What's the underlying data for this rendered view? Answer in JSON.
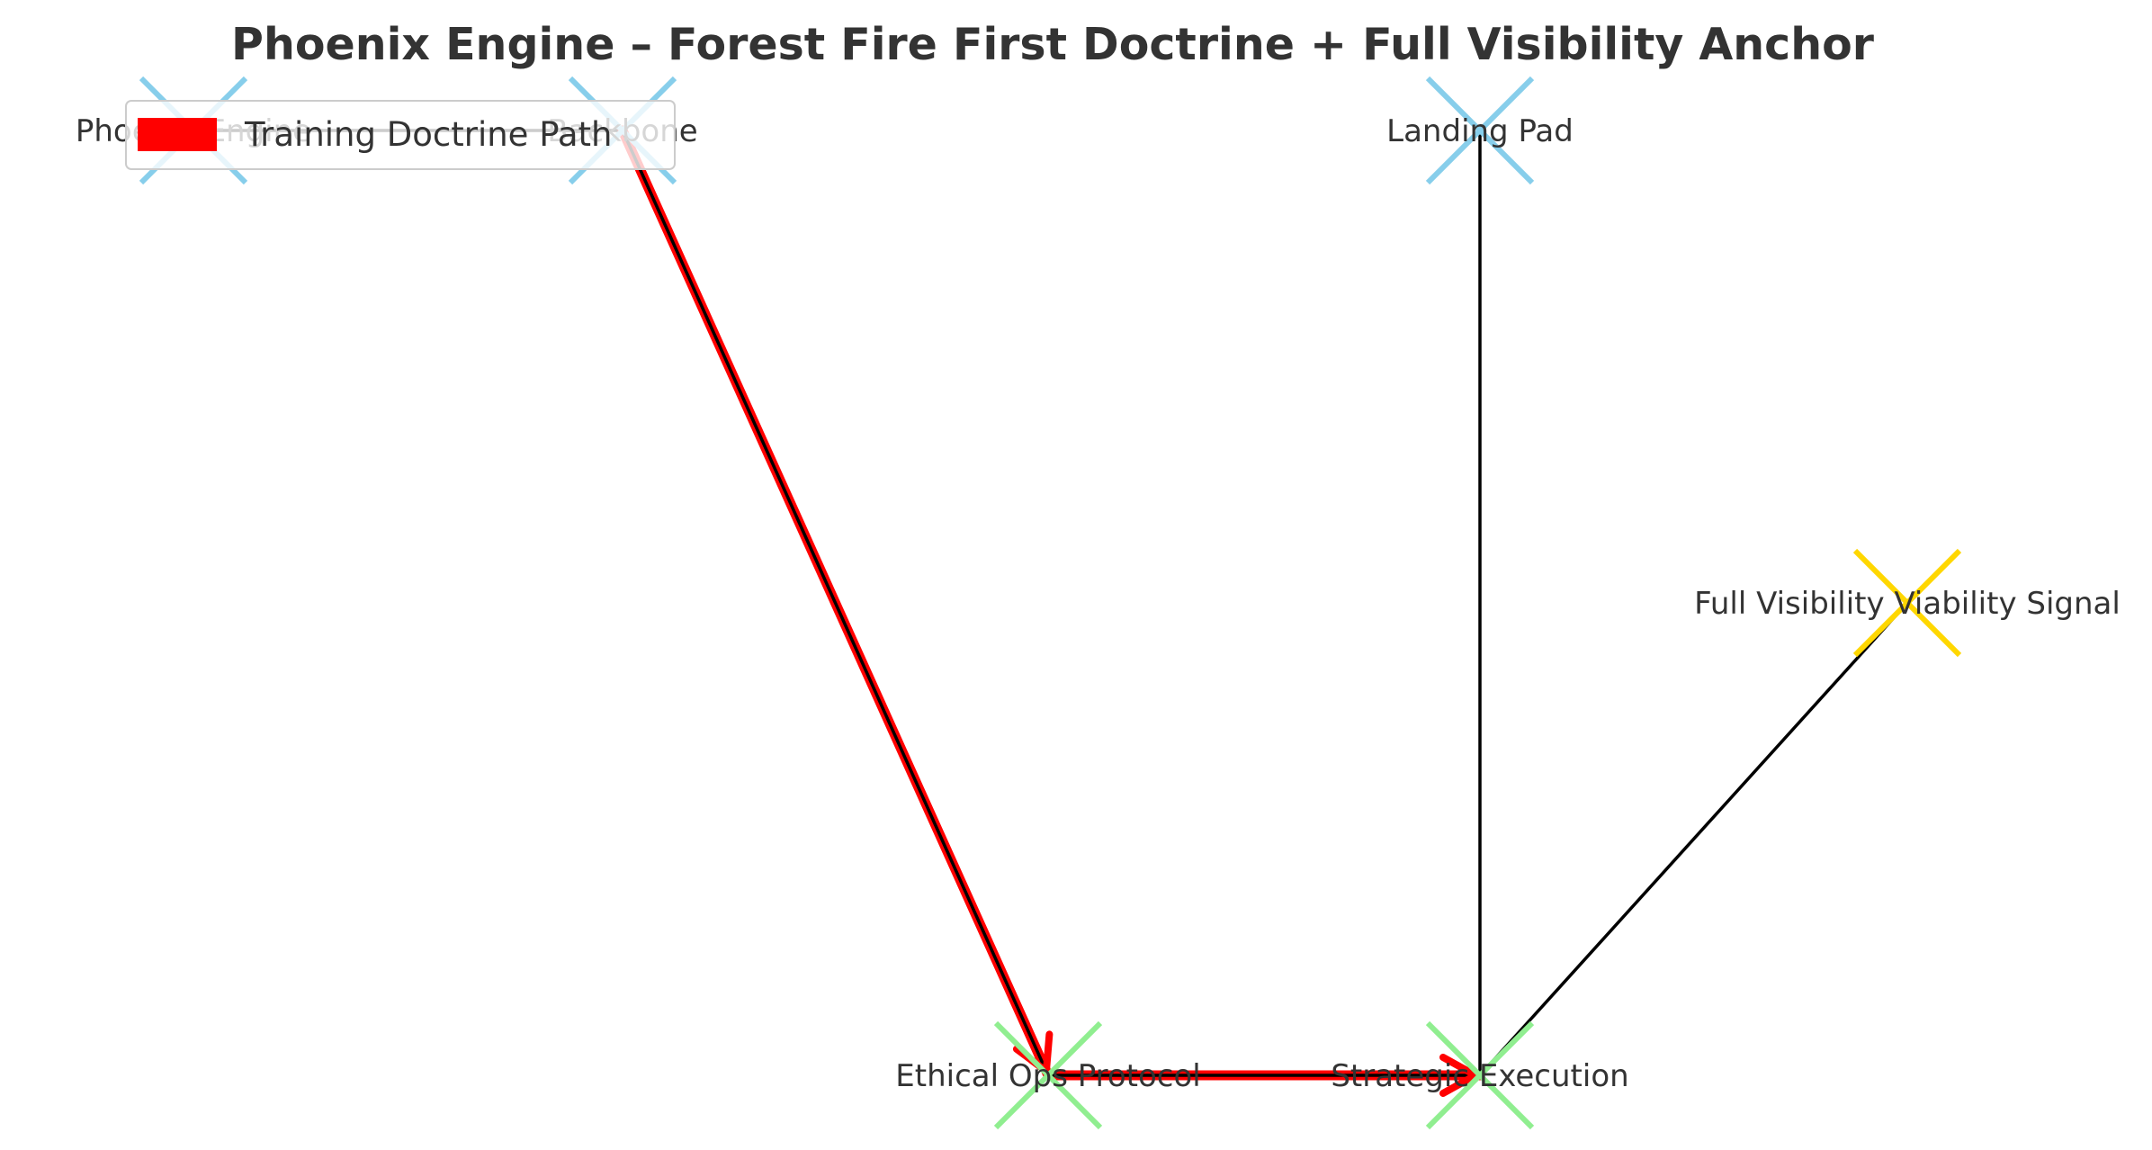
{
  "title": "Phoenix Engine – Forest Fire First Doctrine + Full Visibility Anchor",
  "legend": {
    "label": "Training Doctrine Path",
    "color": "#ff0000"
  },
  "colors": {
    "root_marker": "#87ceeb",
    "operation_marker": "#90ee90",
    "signal_marker": "#ffd700",
    "edge": "#000000",
    "path": "#ff0000",
    "text": "#333333"
  },
  "nodes": [
    {
      "id": "phoenix",
      "label": "Phoenix Engine",
      "category": "root_marker"
    },
    {
      "id": "backbone",
      "label": "Backbone",
      "category": "root_marker"
    },
    {
      "id": "landing",
      "label": "Landing Pad",
      "category": "root_marker"
    },
    {
      "id": "visibility",
      "label": "Full Visibility Viability Signal",
      "category": "signal_marker"
    },
    {
      "id": "ethical",
      "label": "Ethical Ops Protocol",
      "category": "operation_marker"
    },
    {
      "id": "strategic",
      "label": "Strategic Execution",
      "category": "operation_marker"
    }
  ],
  "edges": [
    {
      "from": "phoenix",
      "to": "backbone",
      "training_path": false
    },
    {
      "from": "backbone",
      "to": "ethical",
      "training_path": true
    },
    {
      "from": "ethical",
      "to": "strategic",
      "training_path": true
    },
    {
      "from": "strategic",
      "to": "landing",
      "training_path": false
    },
    {
      "from": "strategic",
      "to": "visibility",
      "training_path": false
    }
  ]
}
